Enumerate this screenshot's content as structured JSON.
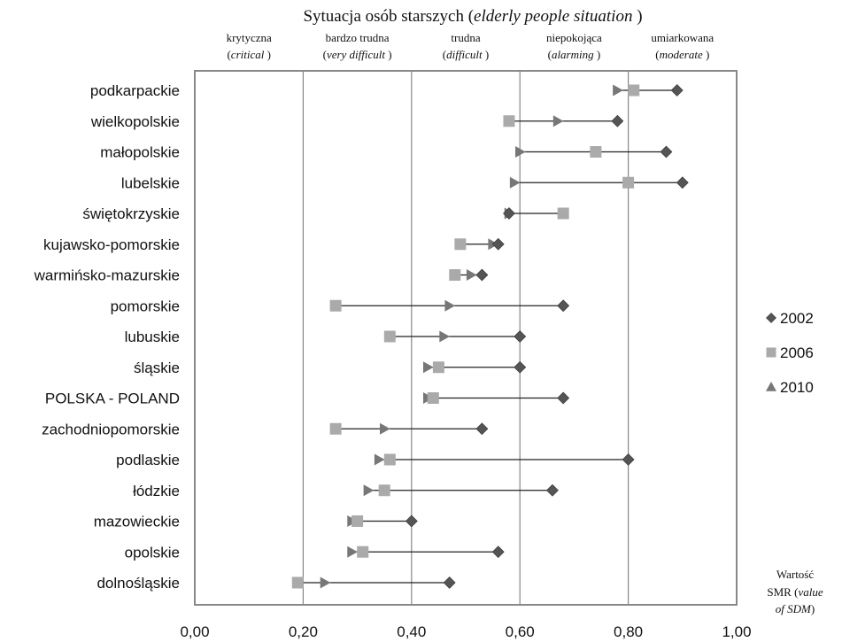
{
  "chart_data": {
    "type": "dumbbell",
    "title_main": "Sytuacja osób starszych (",
    "title_italic": "elderly people situation",
    "title_close": " )",
    "bands": [
      {
        "pl": "krytyczna",
        "en": "critical"
      },
      {
        "pl": "bardzo trudna",
        "en": "very difficult"
      },
      {
        "pl": "trudna",
        "en": "difficult"
      },
      {
        "pl": "niepokojąca",
        "en": "alarming"
      },
      {
        "pl": "umiarkowana",
        "en": "moderate"
      }
    ],
    "xlim": [
      0,
      1
    ],
    "x_ticks": [
      "0,00",
      "0,20",
      "0,40",
      "0,60",
      "0,80",
      "1,00"
    ],
    "x_tick_values": [
      0,
      0.2,
      0.4,
      0.6,
      0.8,
      1.0
    ],
    "xlabel_line1": "Wartość",
    "xlabel_line2_a": "SMR (",
    "xlabel_line2_b": "value",
    "xlabel_line3_a": "of SDM",
    "xlabel_line3_b": ")",
    "legend": [
      {
        "name": "2002",
        "marker": "diamond"
      },
      {
        "name": "2006",
        "marker": "square"
      },
      {
        "name": "2010",
        "marker": "triangle"
      }
    ],
    "categories": [
      "podkarpackie",
      "wielkopolskie",
      "małopolskie",
      "lubelskie",
      "świętokrzyskie",
      "kujawsko-pomorskie",
      "warmińsko-mazurskie",
      "pomorskie",
      "lubuskie",
      "śląskie",
      "POLSKA - POLAND",
      "zachodniopomorskie",
      "podlaskie",
      "łódzkie",
      "mazowieckie",
      "opolskie",
      "dolnośląskie"
    ],
    "series": [
      {
        "name": "2002",
        "values": [
          0.89,
          0.78,
          0.87,
          0.9,
          0.58,
          0.56,
          0.53,
          0.68,
          0.6,
          0.6,
          0.68,
          0.53,
          0.8,
          0.66,
          0.4,
          0.56,
          0.47
        ]
      },
      {
        "name": "2006",
        "values": [
          0.81,
          0.58,
          0.74,
          0.8,
          0.68,
          0.49,
          0.48,
          0.26,
          0.36,
          0.45,
          0.44,
          0.26,
          0.36,
          0.35,
          0.3,
          0.31,
          0.19
        ]
      },
      {
        "name": "2010",
        "values": [
          0.78,
          0.67,
          0.6,
          0.59,
          0.58,
          0.55,
          0.51,
          0.47,
          0.46,
          0.43,
          0.43,
          0.35,
          0.34,
          0.32,
          0.29,
          0.29,
          0.24
        ]
      }
    ],
    "colors": {
      "diamond": "#555555",
      "square": "#aaaaaa",
      "triangle": "#777777",
      "line": "#222222",
      "grid": "#888888",
      "frame": "#888888"
    }
  }
}
